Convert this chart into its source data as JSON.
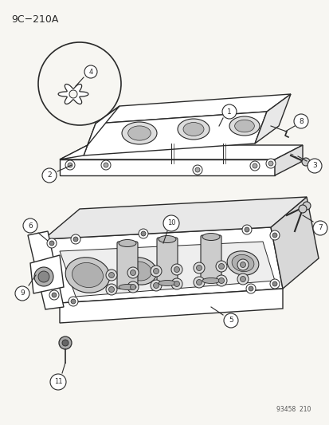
{
  "title": "9C−210A",
  "footer": "93458  210",
  "bg": "#f7f6f2",
  "lc": "#2a2a2a",
  "figsize": [
    4.14,
    5.33
  ],
  "dpi": 100
}
